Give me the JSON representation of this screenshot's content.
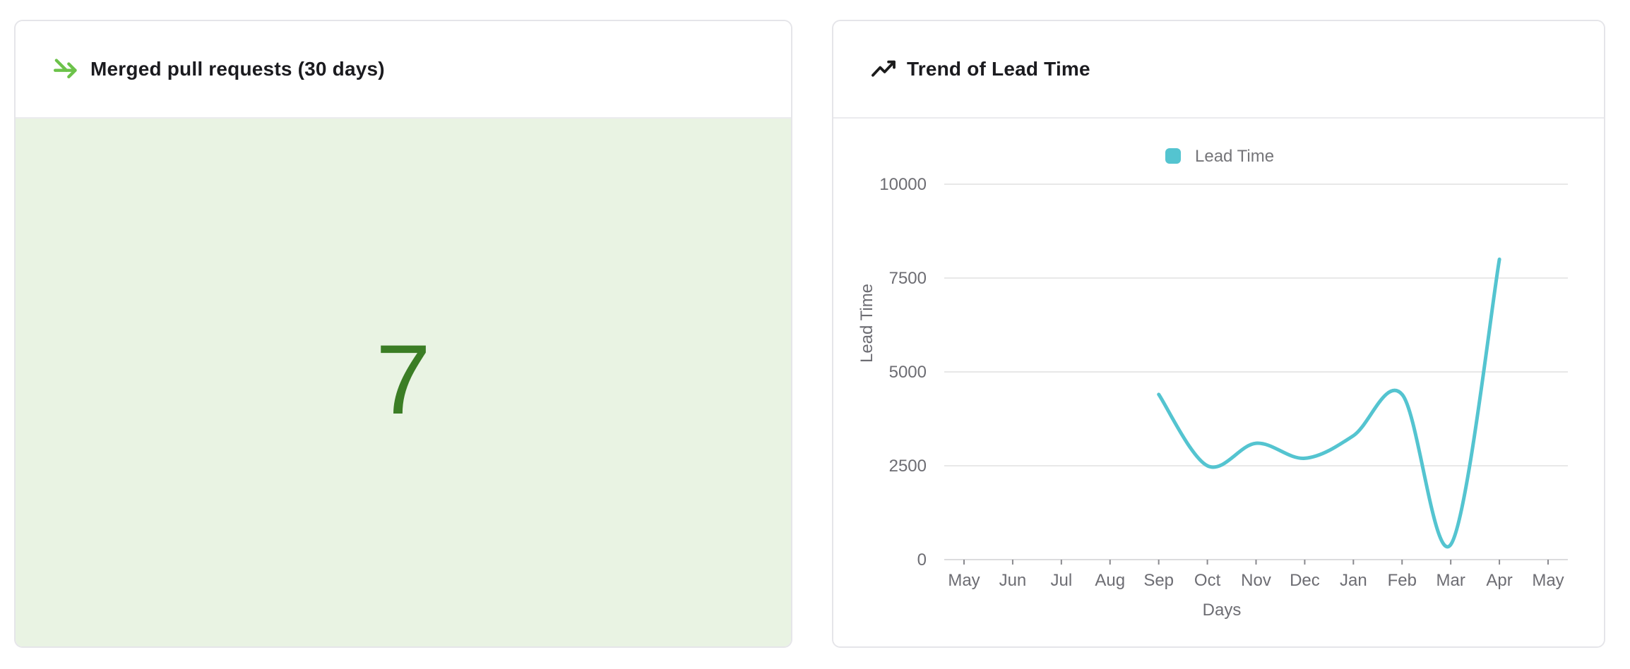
{
  "page": {
    "background": "#ffffff"
  },
  "cards": {
    "merged_prs": {
      "title": "Merged pull requests (30 days)",
      "value": "7",
      "value_color": "#3b7d25",
      "body_background": "#e9f3e3",
      "icon": "git-merge-arrow-icon",
      "icon_color": "#6cc24a"
    },
    "lead_time_trend": {
      "title": "Trend of Lead Time",
      "icon": "trending-up-icon",
      "icon_color": "#1c1c1c"
    }
  },
  "chart_data": {
    "type": "line",
    "title": "Trend of Lead Time",
    "legend": {
      "label": "Lead Time",
      "color": "#54c4d0",
      "position": "top-center"
    },
    "xlabel": "Days",
    "ylabel": "Lead Time",
    "categories": [
      "May",
      "Jun",
      "Jul",
      "Aug",
      "Sep",
      "Oct",
      "Nov",
      "Dec",
      "Jan",
      "Feb",
      "Mar",
      "Apr",
      "May"
    ],
    "series": [
      {
        "name": "Lead Time",
        "color": "#54c4d0",
        "values": [
          null,
          null,
          null,
          null,
          4400,
          2500,
          3100,
          2700,
          3300,
          4400,
          400,
          8000,
          null
        ]
      }
    ],
    "ylim": [
      0,
      10000
    ],
    "yticks": [
      0,
      2500,
      5000,
      7500,
      10000
    ],
    "grid": true,
    "smooth": true,
    "axis_text_color": "#6d6d73",
    "grid_color": "#e8e8e8",
    "axis_line_color": "#dcdcde",
    "tick_color": "#8a8a8f"
  }
}
